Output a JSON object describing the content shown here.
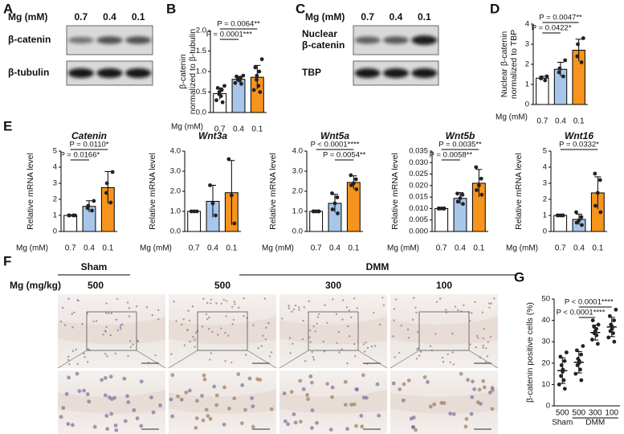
{
  "blots": [
    {
      "letter": "A",
      "header": "Mg (mM)",
      "lanes": [
        "0.7",
        "0.4",
        "0.1"
      ],
      "rows": [
        [
          "β-catenin"
        ],
        [
          "β-tubulin"
        ]
      ]
    },
    {
      "letter": "C",
      "header": "Mg (mM)",
      "lanes": [
        "0.7",
        "0.4",
        "0.1"
      ],
      "rows": [
        [
          "Nuclear",
          "β-catenin"
        ],
        [
          "TBP"
        ]
      ]
    }
  ],
  "histology": {
    "letter": "F",
    "groups": [
      "Sham",
      "DMM"
    ],
    "dose_label": "Mg (mg/kg)",
    "doses": [
      "500",
      "500",
      "300",
      "100"
    ]
  },
  "panel_e_letter": "E",
  "chart_data": [
    {
      "type": "bar",
      "letter": "B",
      "ylabel": [
        "β-catenin",
        "normalized to β-tubulin"
      ],
      "xlabel": "Mg (mM)",
      "categories": [
        "0.7",
        "0.4",
        "0.1"
      ],
      "values": [
        0.46,
        0.81,
        0.86
      ],
      "errors": [
        0.14,
        0.07,
        0.29
      ],
      "colors": [
        "#ffffff",
        "#a8c6ea",
        "#f7941d"
      ],
      "points": [
        [
          0.25,
          0.3,
          0.4,
          0.45,
          0.5,
          0.55,
          0.6,
          0.65
        ],
        [
          0.7,
          0.72,
          0.78,
          0.8,
          0.82,
          0.85,
          0.88,
          0.9
        ],
        [
          0.5,
          0.55,
          0.65,
          0.8,
          0.9,
          1.0,
          1.1,
          1.3
        ]
      ],
      "ylim": [
        0,
        2
      ],
      "yticks": [
        {
          "value": 0,
          "label": "0.0"
        },
        {
          "value": 0.5,
          "label": "0.5"
        },
        {
          "value": 1,
          "label": "1.0"
        },
        {
          "value": 1.5,
          "label": "1.5"
        },
        {
          "value": 2,
          "label": "2.0"
        }
      ],
      "annotations": [
        "P = 0.0001***",
        "P = 0.0064**"
      ]
    },
    {
      "type": "bar",
      "letter": "D",
      "ylabel": [
        "Nuclear β-catenin",
        "normalized to TBP"
      ],
      "xlabel": "Mg (mM)",
      "categories": [
        "0.7",
        "0.4",
        "0.1"
      ],
      "values": [
        1.31,
        1.75,
        2.7
      ],
      "errors": [
        0.09,
        0.35,
        0.55
      ],
      "colors": [
        "#ffffff",
        "#a8c6ea",
        "#f7941d"
      ],
      "points": [
        [
          1.2,
          1.3,
          1.35,
          1.4
        ],
        [
          1.4,
          1.6,
          1.8,
          2.2
        ],
        [
          2.1,
          2.4,
          3.0,
          3.3
        ]
      ],
      "ylim": [
        0,
        4
      ],
      "yticks": [
        0,
        1,
        2,
        3,
        4
      ],
      "annotations": [
        "P = 0.0422*",
        "P = 0.0047**"
      ]
    },
    {
      "type": "bar",
      "title": "Catenin",
      "ylabel": [
        "Relative mRNA level"
      ],
      "xlabel": "Mg (mM)",
      "categories": [
        "0.7",
        "0.4",
        "0.1"
      ],
      "values": [
        1.0,
        1.56,
        2.73
      ],
      "errors": [
        0,
        0.35,
        1.0
      ],
      "colors": [
        "#ffffff",
        "#a8c6ea",
        "#f7941d"
      ],
      "points": [
        [
          1,
          1,
          1,
          1
        ],
        [
          1.3,
          1.45,
          1.6,
          1.9
        ],
        [
          1.8,
          2.4,
          3.0,
          3.7
        ]
      ],
      "ylim": [
        0,
        5
      ],
      "yticks": [
        0,
        1,
        2,
        3,
        4,
        5
      ],
      "annotations": [
        "P = 0.0166*",
        "P = 0.0110*"
      ]
    },
    {
      "type": "bar",
      "title": "Wnt3a",
      "ylabel": [
        "Relative mRNA level"
      ],
      "xlabel": "Mg (mM)",
      "categories": [
        "0.7",
        "0.4",
        "0.1"
      ],
      "values": [
        1.0,
        1.5,
        1.93
      ],
      "errors": [
        0,
        0.8,
        1.6
      ],
      "colors": [
        "#ffffff",
        "#a8c6ea",
        "#f7941d"
      ],
      "points": [
        [
          1,
          1,
          1
        ],
        [
          0.8,
          1.4,
          2.3
        ],
        [
          0.4,
          1.8,
          3.6
        ]
      ],
      "ylim": [
        0,
        4
      ],
      "yticks": [
        {
          "value": 0,
          "label": "0.0"
        },
        {
          "value": 1,
          "label": "1.0"
        },
        {
          "value": 2,
          "label": "2.0"
        },
        {
          "value": 3,
          "label": "3.0"
        },
        {
          "value": 4,
          "label": "4.0"
        }
      ],
      "annotations": []
    },
    {
      "type": "bar",
      "title": "Wnt5a",
      "ylabel": [
        "Relative mRNA level"
      ],
      "xlabel": "Mg (mM)",
      "categories": [
        "0.7",
        "0.4",
        "0.1"
      ],
      "values": [
        1.0,
        1.4,
        2.44
      ],
      "errors": [
        0,
        0.45,
        0.33
      ],
      "colors": [
        "#ffffff",
        "#a8c6ea",
        "#f7941d"
      ],
      "points": [
        [
          1,
          1,
          1,
          1,
          1
        ],
        [
          0.9,
          1.1,
          1.4,
          1.7,
          1.9
        ],
        [
          2.1,
          2.3,
          2.4,
          2.6,
          2.8
        ]
      ],
      "ylim": [
        0,
        4
      ],
      "yticks": [
        {
          "value": 0,
          "label": "0.0"
        },
        {
          "value": 1,
          "label": "1.0"
        },
        {
          "value": 2,
          "label": "2.0"
        },
        {
          "value": 3,
          "label": "3.0"
        },
        {
          "value": 4,
          "label": "4.0"
        }
      ],
      "annotations": [
        "P = 0.0054**",
        "P < 0.0001****"
      ]
    },
    {
      "type": "bar",
      "title": "Wnt5b",
      "ylabel": [
        "Relative mRNA level"
      ],
      "xlabel": "Mg (mM)",
      "categories": [
        "0.7",
        "0.4",
        "0.1"
      ],
      "values": [
        0.01,
        0.0144,
        0.021
      ],
      "errors": [
        0,
        0.0025,
        0.006
      ],
      "colors": [
        "#ffffff",
        "#a8c6ea",
        "#f7941d"
      ],
      "points": [
        [
          0.01,
          0.01,
          0.01,
          0.01,
          0.01
        ],
        [
          0.012,
          0.013,
          0.0145,
          0.016,
          0.0165
        ],
        [
          0.016,
          0.018,
          0.02,
          0.023,
          0.028
        ]
      ],
      "ylim": [
        0,
        0.035
      ],
      "yticks": [
        {
          "value": 0,
          "label": "0.000"
        },
        {
          "value": 0.005,
          "label": "0.005"
        },
        {
          "value": 0.01,
          "label": "0.010"
        },
        {
          "value": 0.015,
          "label": "0.015"
        },
        {
          "value": 0.02,
          "label": "0.020"
        },
        {
          "value": 0.025,
          "label": "0.025"
        },
        {
          "value": 0.03,
          "label": "0.030"
        },
        {
          "value": 0.035,
          "label": "0.035"
        }
      ],
      "annotations": [
        "P = 0.0058**",
        "P = 0.0035**"
      ]
    },
    {
      "type": "bar",
      "title": "Wnt16",
      "ylabel": [
        "Relative mRNA level"
      ],
      "xlabel": "Mg (mM)",
      "categories": [
        "0.7",
        "0.4",
        "0.1"
      ],
      "values": [
        1.0,
        0.75,
        2.4
      ],
      "errors": [
        0,
        0.33,
        1.0
      ],
      "colors": [
        "#ffffff",
        "#a8c6ea",
        "#f7941d"
      ],
      "points": [
        [
          1,
          1,
          1,
          1,
          1
        ],
        [
          0.4,
          0.55,
          0.7,
          0.9,
          1.2
        ],
        [
          1.2,
          1.6,
          2.4,
          3.2,
          3.6
        ]
      ],
      "ylim": [
        0,
        5
      ],
      "yticks": [
        0,
        1,
        2,
        3,
        4,
        5
      ],
      "annotations": [
        "P = 0.0332*"
      ]
    },
    {
      "type": "dot",
      "letter": "G",
      "ylabel": [
        "β-catenin  positive cells (%)"
      ],
      "categories": [
        "500",
        "500",
        "300",
        "100"
      ],
      "groups": [
        "Sham",
        "DMM"
      ],
      "values": [
        16.5,
        20.4,
        34.3,
        36.9
      ],
      "errors": [
        6,
        5,
        3.5,
        4.5
      ],
      "points": [
        [
          8,
          10,
          12,
          14,
          16,
          17,
          19,
          21,
          23,
          25
        ],
        [
          12,
          15,
          17,
          19,
          20,
          21,
          22,
          24,
          26,
          28
        ],
        [
          29,
          31,
          33,
          34,
          35,
          36,
          37,
          38,
          40
        ],
        [
          30,
          32,
          34,
          35,
          36,
          37,
          38,
          40,
          42,
          45
        ]
      ],
      "ylim": [
        0,
        50
      ],
      "yticks": [
        0,
        10,
        20,
        30,
        40,
        50
      ],
      "annotations": [
        "P < 0.0001****",
        "P < 0.0001****"
      ]
    }
  ]
}
